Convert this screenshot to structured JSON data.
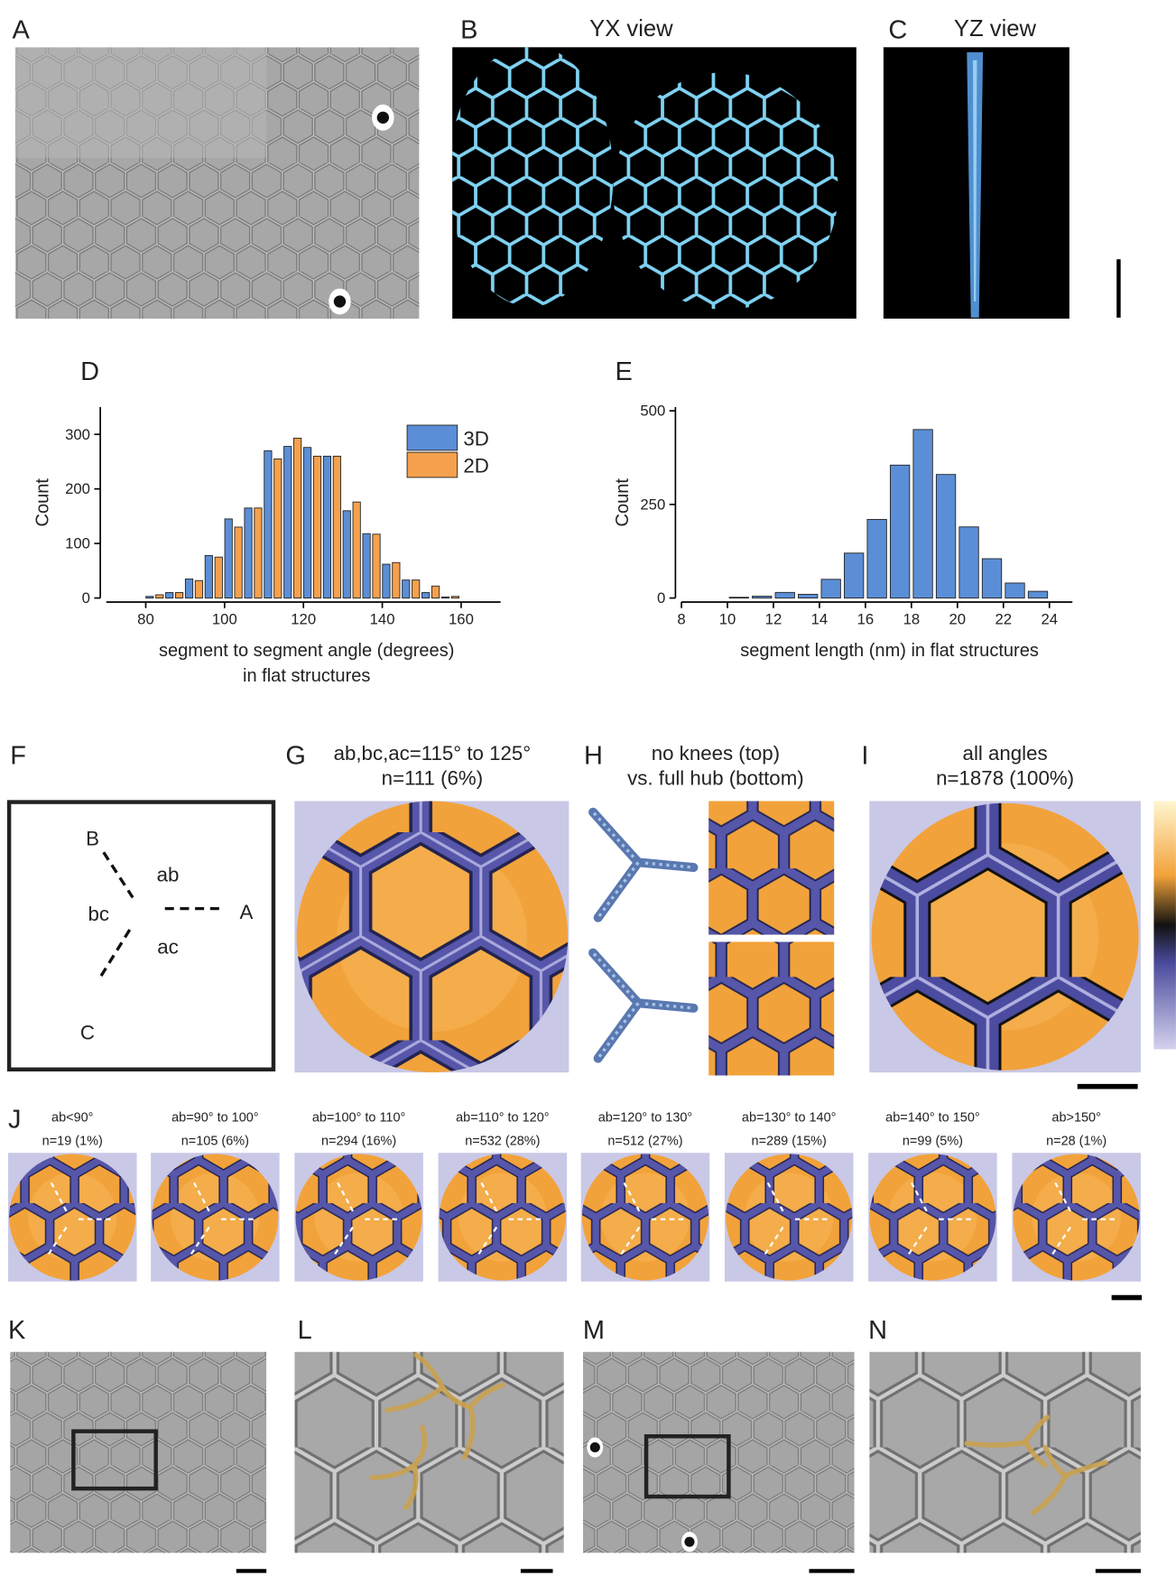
{
  "figure": {
    "panel_labels": [
      "A",
      "B",
      "C",
      "D",
      "E",
      "F",
      "G",
      "H",
      "I",
      "J",
      "K",
      "L",
      "M",
      "N"
    ],
    "b_title": "YX view",
    "c_title": "YZ view",
    "f_labels": [
      "B",
      "ab",
      "bc",
      "A",
      "ac",
      "C"
    ],
    "g_title": [
      "ab,bc,ac=115° to 125°",
      "n=111 (6%)"
    ],
    "h_title": [
      "no knees (top)",
      "vs. full hub (bottom)"
    ],
    "i_title": [
      "all angles",
      "n=1878 (100%)"
    ],
    "j_panels": [
      [
        "ab<90°",
        "n=19 (1%)"
      ],
      [
        "ab=90° to 100°",
        "n=105 (6%)"
      ],
      [
        "ab=100° to 110°",
        "n=294 (16%)"
      ],
      [
        "ab=110° to 120°",
        "n=532 (28%)"
      ],
      [
        "ab=120° to 130°",
        "n=512 (27%)"
      ],
      [
        "ab=130° to 140°",
        "n=289 (15%)"
      ],
      [
        "ab=140° to 150°",
        "n=99 (5%)"
      ],
      [
        "ab>150°",
        "n=28 (1%)"
      ]
    ]
  },
  "chart_data": [
    {
      "type": "histogram",
      "bins": [
        80,
        85,
        90,
        95,
        100,
        105,
        110,
        115,
        120,
        125,
        130,
        135,
        140,
        145,
        150,
        155,
        160
      ],
      "series": [
        {
          "name": "3D",
          "color": "#5b8ed6",
          "values": [
            3,
            10,
            35,
            78,
            145,
            165,
            270,
            278,
            276,
            260,
            160,
            118,
            62,
            33,
            10,
            2
          ]
        },
        {
          "name": "2D",
          "color": "#f5a04d",
          "values": [
            6,
            10,
            32,
            75,
            130,
            165,
            255,
            293,
            260,
            260,
            176,
            117,
            65,
            33,
            22,
            3
          ]
        }
      ],
      "xlim": [
        70,
        170
      ],
      "xticks": [
        80,
        100,
        120,
        140,
        160
      ],
      "ylim": [
        0,
        350
      ],
      "yticks": [
        0,
        100,
        200,
        300
      ],
      "ylabel": "Count",
      "xlabel": [
        "segment to segment angle (degrees)",
        "in flat structures"
      ],
      "legend": "upper right"
    },
    {
      "type": "histogram",
      "bins": [
        10,
        11,
        12,
        13,
        14,
        15,
        16,
        17,
        18,
        19,
        20,
        21,
        22,
        23,
        24
      ],
      "series": [
        {
          "color": "#5b8ed6",
          "values": [
            2,
            5,
            15,
            10,
            50,
            120,
            210,
            355,
            450,
            330,
            190,
            105,
            40,
            18
          ]
        }
      ],
      "xlim": [
        8,
        25
      ],
      "xticks": [
        8,
        10,
        12,
        14,
        16,
        18,
        20,
        22,
        24
      ],
      "ylim": [
        0,
        510
      ],
      "yticks": [
        0,
        250,
        500
      ],
      "ylabel": "Count",
      "xlabel": [
        "segment length (nm) in flat structures"
      ]
    }
  ]
}
